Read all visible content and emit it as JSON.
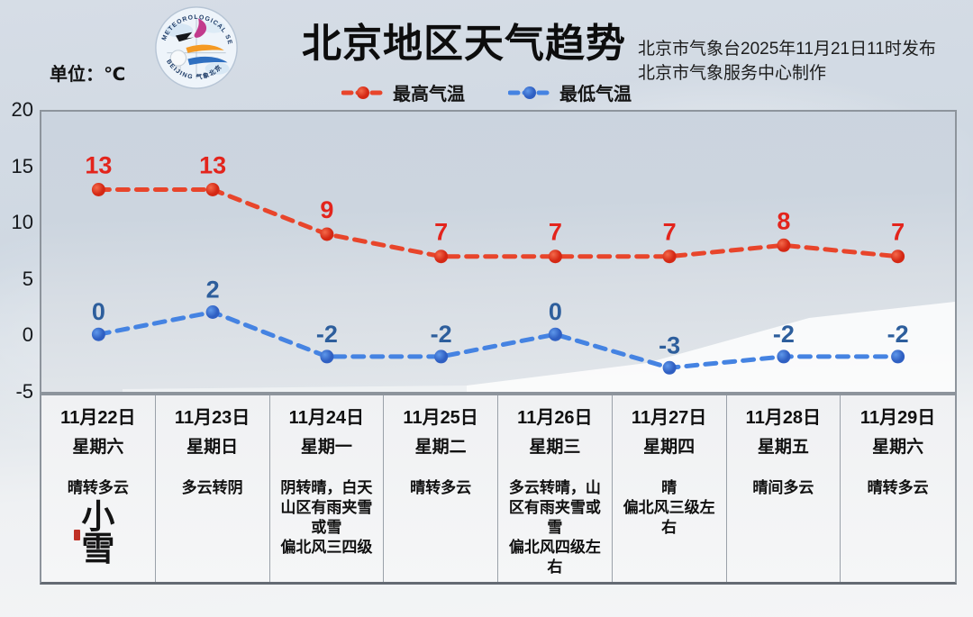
{
  "title": "北京地区天气趋势",
  "unit_label": "单位：℃",
  "source": {
    "line1": "北京市气象台2025年11月21日11时发布",
    "line2": "北京市气象服务中心制作"
  },
  "logo": {
    "top_text": "METEOROLOGICAL SERVICE",
    "bottom_text": "BEIJING 气象北京"
  },
  "colors": {
    "high_line": "#e8452b",
    "high_label": "#e3241c",
    "low_line": "#4583e2",
    "low_label": "#2d5e9c",
    "axis_text": "#15181c",
    "border": "#8d949c"
  },
  "chart_data": {
    "type": "line",
    "title": "北京地区天气趋势",
    "ylabel": "℃",
    "ylim": [
      -5,
      20
    ],
    "yticks": [
      20,
      15,
      10,
      5,
      0,
      -5
    ],
    "grid": false,
    "legend_position": "top",
    "categories": [
      "11月22日",
      "11月23日",
      "11月24日",
      "11月25日",
      "11月26日",
      "11月27日",
      "11月28日",
      "11月29日"
    ],
    "series": [
      {
        "name": "最高气温",
        "color": "#e8452b",
        "label_color": "#e3241c",
        "marker_inner": "#d42814",
        "marker_outer": "#f4694a",
        "values": [
          13,
          13,
          9,
          7,
          7,
          7,
          8,
          7
        ]
      },
      {
        "name": "最低气温",
        "color": "#4583e2",
        "label_color": "#2d5e9c",
        "marker_inner": "#2f5fc2",
        "marker_outer": "#5e97ea",
        "values": [
          0,
          2,
          -2,
          -2,
          0,
          -3,
          -2,
          -2
        ]
      }
    ]
  },
  "days": [
    {
      "date": "11月22日",
      "weekday": "星期六",
      "weather": "晴转多云",
      "solar_term": "小雪"
    },
    {
      "date": "11月23日",
      "weekday": "星期日",
      "weather": "多云转阴"
    },
    {
      "date": "11月24日",
      "weekday": "星期一",
      "weather": "阴转晴，白天\n山区有雨夹雪\n或雪\n偏北风三四级"
    },
    {
      "date": "11月25日",
      "weekday": "星期二",
      "weather": "晴转多云"
    },
    {
      "date": "11月26日",
      "weekday": "星期三",
      "weather": "多云转晴，山\n区有雨夹雪或\n雪\n偏北风四级左\n右"
    },
    {
      "date": "11月27日",
      "weekday": "星期四",
      "weather": "晴\n偏北风三级左\n右"
    },
    {
      "date": "11月28日",
      "weekday": "星期五",
      "weather": "晴间多云"
    },
    {
      "date": "11月29日",
      "weekday": "星期六",
      "weather": "晴转多云"
    }
  ]
}
